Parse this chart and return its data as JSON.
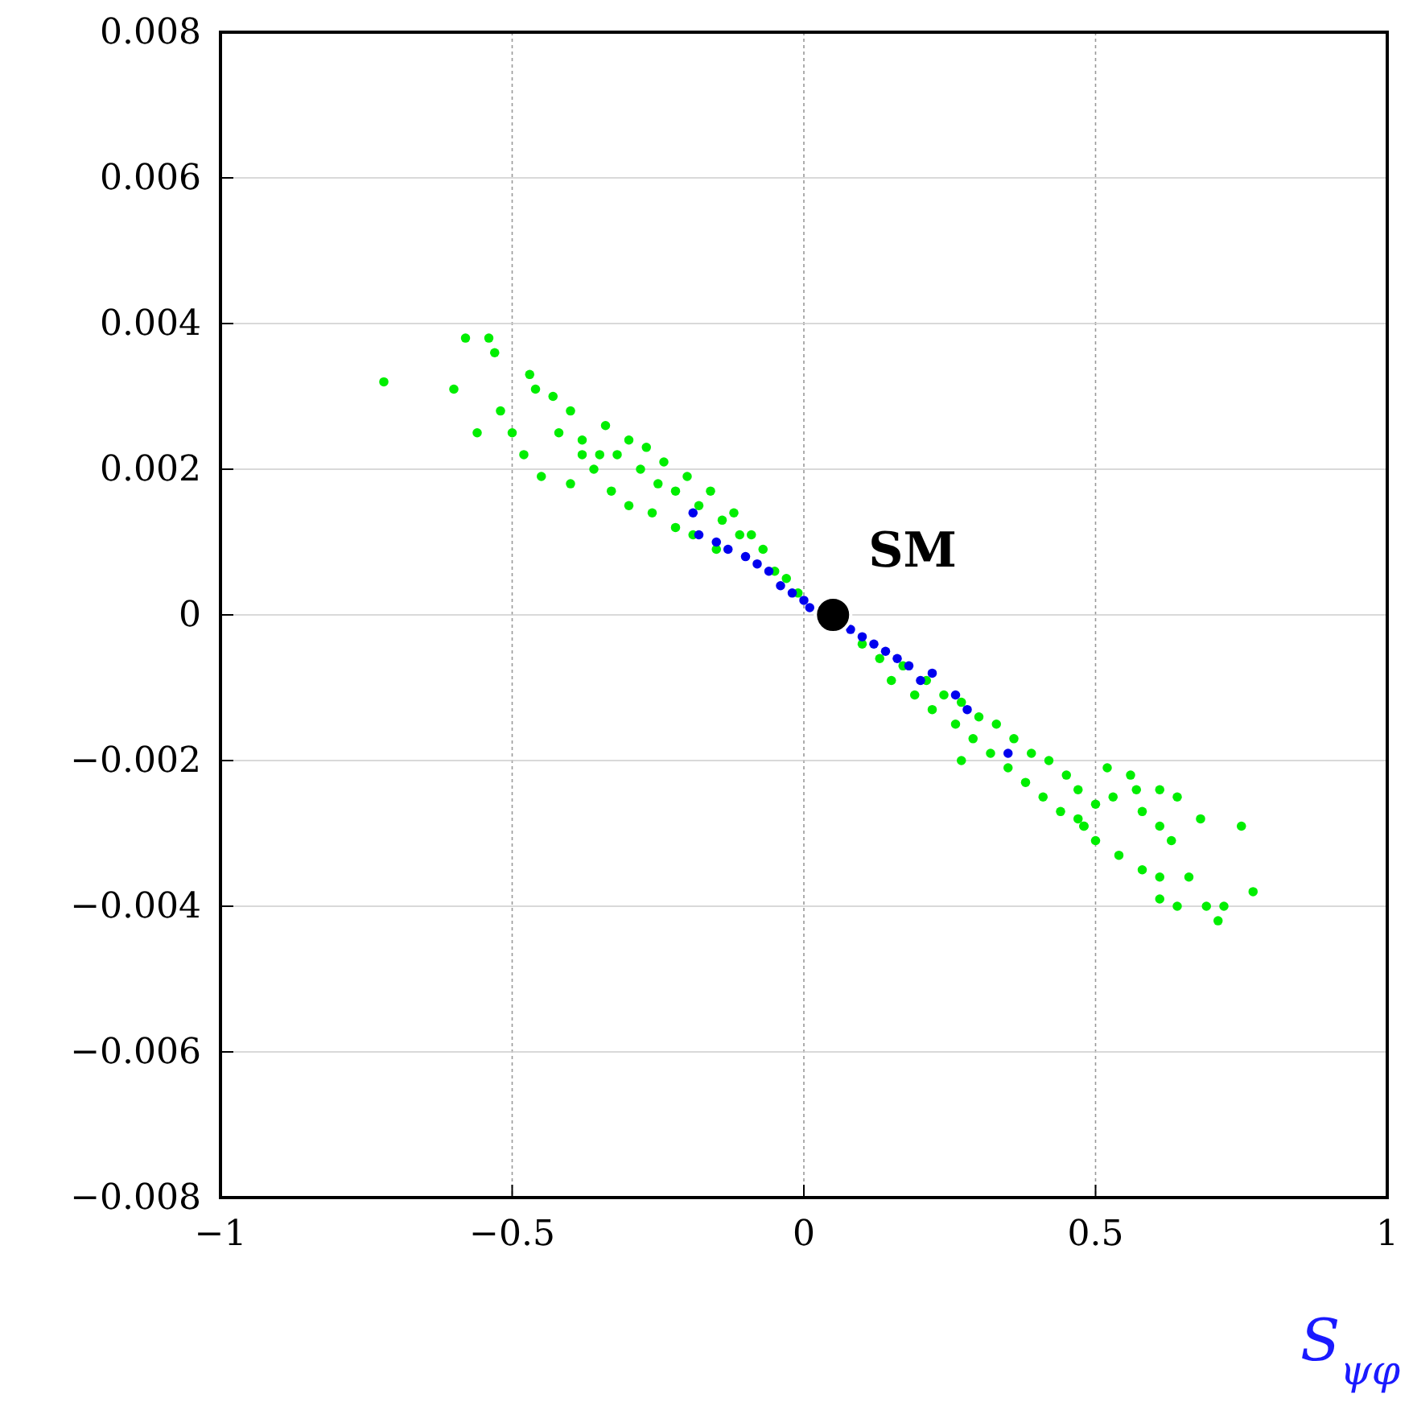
{
  "chart_data": {
    "type": "scatter",
    "xlabel": "S$_{ψφ}$",
    "xlim": [
      -1,
      1
    ],
    "xticks": [
      -1,
      -0.5,
      0,
      0.5,
      1
    ],
    "ylim": [
      -0.008,
      0.008
    ],
    "yticks": [
      -0.008,
      -0.006,
      -0.004,
      -0.002,
      0,
      0.002,
      0.004,
      0.006,
      0.008
    ],
    "grid": true,
    "marker": "circle",
    "series": [
      {
        "color": "#00ee00",
        "x": [
          -0.72,
          -0.58,
          -0.54,
          -0.53,
          -0.6,
          -0.47,
          -0.46,
          -0.52,
          -0.56,
          -0.5,
          -0.48,
          -0.43,
          -0.4,
          -0.42,
          -0.38,
          -0.45,
          -0.4,
          -0.35,
          -0.38,
          -0.36,
          -0.34,
          -0.33,
          -0.32,
          -0.3,
          -0.3,
          -0.28,
          -0.27,
          -0.26,
          -0.25,
          -0.24,
          -0.22,
          -0.22,
          -0.2,
          -0.19,
          -0.18,
          -0.16,
          -0.15,
          -0.14,
          -0.12,
          -0.11,
          -0.09,
          -0.07,
          -0.05,
          -0.03,
          -0.01,
          0.1,
          0.13,
          0.15,
          0.17,
          0.19,
          0.21,
          0.22,
          0.24,
          0.26,
          0.27,
          0.29,
          0.3,
          0.32,
          0.33,
          0.35,
          0.36,
          0.38,
          0.39,
          0.41,
          0.42,
          0.44,
          0.45,
          0.47,
          0.48,
          0.5,
          0.27,
          0.52,
          0.56,
          0.57,
          0.61,
          0.64,
          0.68,
          0.75,
          0.58,
          0.61,
          0.63,
          0.54,
          0.58,
          0.61,
          0.66,
          0.61,
          0.64,
          0.69,
          0.72,
          0.71,
          0.77,
          0.48,
          0.5,
          0.53,
          0.47
        ],
        "values": [
          0.0032,
          0.0038,
          0.0038,
          0.0036,
          0.0031,
          0.0033,
          0.0031,
          0.0028,
          0.0025,
          0.0025,
          0.0022,
          0.003,
          0.0028,
          0.0025,
          0.0022,
          0.0019,
          0.0018,
          0.0022,
          0.0024,
          0.002,
          0.0026,
          0.0017,
          0.0022,
          0.0024,
          0.0015,
          0.002,
          0.0023,
          0.0014,
          0.0018,
          0.0021,
          0.0012,
          0.0017,
          0.0019,
          0.0011,
          0.0015,
          0.0017,
          0.0009,
          0.0013,
          0.0014,
          0.0011,
          0.0011,
          0.0009,
          0.0006,
          0.0005,
          0.0003,
          -0.0004,
          -0.0006,
          -0.0009,
          -0.0007,
          -0.0011,
          -0.0009,
          -0.0013,
          -0.0011,
          -0.0015,
          -0.0012,
          -0.0017,
          -0.0014,
          -0.0019,
          -0.0015,
          -0.0021,
          -0.0017,
          -0.0023,
          -0.0019,
          -0.0025,
          -0.002,
          -0.0027,
          -0.0022,
          -0.0024,
          -0.0029,
          -0.0026,
          -0.002,
          -0.0021,
          -0.0022,
          -0.0024,
          -0.0024,
          -0.0025,
          -0.0028,
          -0.0029,
          -0.0027,
          -0.0029,
          -0.0031,
          -0.0033,
          -0.0035,
          -0.0036,
          -0.0036,
          -0.0039,
          -0.004,
          -0.004,
          -0.004,
          -0.0042,
          -0.0038,
          -0.0029,
          -0.0031,
          -0.0025,
          -0.0028
        ]
      },
      {
        "color": "#0000ee",
        "x": [
          -0.19,
          -0.18,
          -0.15,
          -0.13,
          -0.1,
          -0.08,
          -0.06,
          -0.04,
          -0.02,
          0,
          0.01,
          0.08,
          0.1,
          0.12,
          0.14,
          0.16,
          0.18,
          0.2,
          0.22,
          0.26,
          0.28,
          0.35
        ],
        "values": [
          0.0014,
          0.0011,
          0.001,
          0.0009,
          0.0008,
          0.0007,
          0.0006,
          0.0004,
          0.0003,
          0.0002,
          0.0001,
          -0.0002,
          -0.0003,
          -0.0004,
          -0.0005,
          -0.0006,
          -0.0007,
          -0.0009,
          -0.0008,
          -0.0011,
          -0.0013,
          -0.0019
        ]
      },
      {
        "color": "#000000",
        "x": [
          0.05
        ],
        "values": [
          0
        ]
      }
    ],
    "annotations": [
      {
        "text": "SM",
        "x": 0.05,
        "y": 0
      }
    ]
  }
}
